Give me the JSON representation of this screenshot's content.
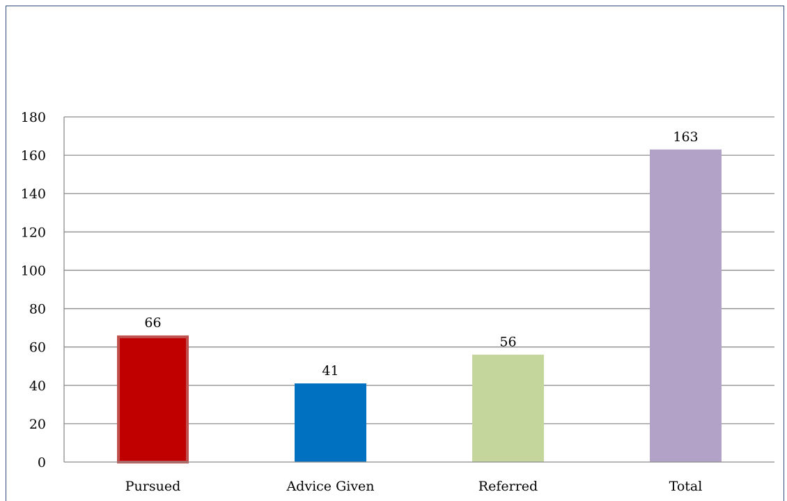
{
  "chart_data": {
    "type": "bar",
    "title": "",
    "xlabel": "",
    "ylabel": "",
    "categories": [
      "Pursued",
      "Advice Given",
      "Referred",
      "Total"
    ],
    "values": [
      66,
      41,
      56,
      163
    ],
    "data_labels": [
      "66",
      "41",
      "56",
      "163"
    ],
    "ylim": [
      0,
      180
    ],
    "yticks": [
      0,
      20,
      40,
      60,
      80,
      100,
      120,
      140,
      160,
      180
    ],
    "grid": true,
    "legend": "none",
    "colors": [
      "#c00000",
      "#0070c0",
      "#c4d69b",
      "#b2a2c7"
    ],
    "highlight_border": "#c0504d"
  }
}
